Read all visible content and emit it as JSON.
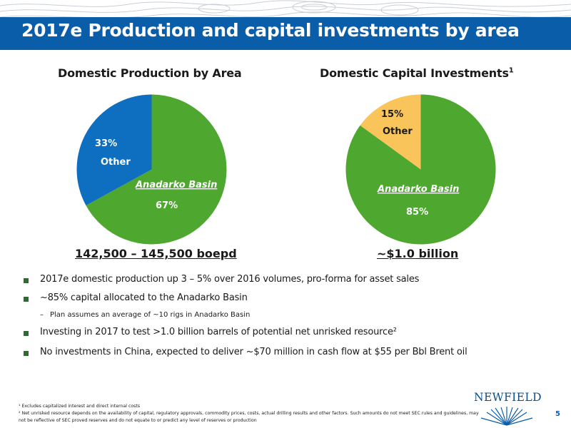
{
  "slide": {
    "title": "2017e Production and capital investments by area",
    "page_number": "5"
  },
  "colors": {
    "banner": "#0a5da8",
    "green": "#4ea72e",
    "blue": "#0e6ec0",
    "gold": "#f9c45a",
    "bullet": "#2f6b2f"
  },
  "charts": {
    "production": {
      "title": "Domestic Production by Area",
      "summary": "142,500 – 145,500 boepd",
      "anadarko_label": "Anadarko Basin",
      "anadarko_pct": "67%",
      "other_label": "Other",
      "other_pct": "33%"
    },
    "capital": {
      "title": "Domestic Capital Investments",
      "title_sup": "1",
      "summary": "~$1.0 billion",
      "anadarko_label": "Anadarko Basin",
      "anadarko_pct": "85%",
      "other_label": "Other",
      "other_pct": "15%"
    }
  },
  "chart_data": [
    {
      "type": "pie",
      "title": "Domestic Production by Area",
      "categories": [
        "Anadarko Basin",
        "Other"
      ],
      "values": [
        67,
        33
      ],
      "colors": [
        "#4ea72e",
        "#0e6ec0"
      ],
      "start": "12 o'clock, clockwise"
    },
    {
      "type": "pie",
      "title": "Domestic Capital Investments",
      "categories": [
        "Anadarko Basin",
        "Other"
      ],
      "values": [
        85,
        15
      ],
      "colors": [
        "#4ea72e",
        "#f9c45a"
      ],
      "start": "12 o'clock, clockwise"
    }
  ],
  "bullets": [
    {
      "text": "2017e domestic production up 3 – 5% over 2016 volumes, pro-forma for asset sales"
    },
    {
      "text": "~85% capital allocated to the Anadarko Basin"
    },
    {
      "text": "Investing in 2017 to test >1.0 billion barrels of potential net unrisked resource²"
    },
    {
      "text": "No investments in China, expected to deliver ~$70 million in cash flow at $55 per Bbl Brent oil"
    }
  ],
  "sub_bullet": {
    "dash": "–",
    "text": "Plan assumes an average of ~10 rigs in Anadarko Basin"
  },
  "footnotes": {
    "fn1": "¹ Excludes capitalized interest and direct internal costs",
    "fn2": "² Net unrisked resource depends on the availability of capital, regulatory approvals, commodity prices, costs, actual drilling results and other factors. Such amounts do not meet SEC rules and guidelines, may not be reflective of SEC proved reserves and do not equate to or predict any level of reserves or production"
  },
  "logo": {
    "text": "NEWFIELD"
  }
}
